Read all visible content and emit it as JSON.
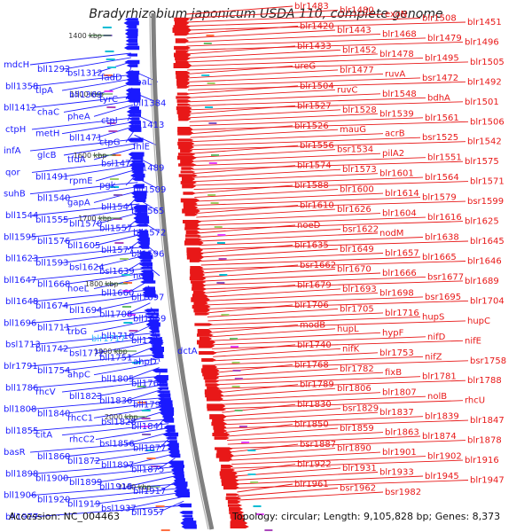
{
  "title": "Bradyrhizobium japonicum USDA 110, complete genome",
  "footer": {
    "accession": "Accession: NC_004463",
    "topology": "Topology: circular; Length: 9,105,828 bp; Genes: 8,373"
  },
  "colors": {
    "minus_strand": "#1a1aff",
    "plus_strand": "#e81818",
    "backbone": "#808080",
    "highlight_label": "#33bbff",
    "scale_marker": "#2e7d32"
  },
  "scale_labels": [
    "1400 kbp",
    "1500 kbp",
    "1600 kbp",
    "1700 kbp",
    "1800 kbp",
    "1900 kbp",
    "2000 kbp",
    "2100 kbp"
  ],
  "left_genes": [
    "mdcH",
    "bll1292",
    "bsl1312",
    "fadD",
    "coaL",
    "bll1358",
    "tlpA",
    "bll1369",
    "tyrC",
    "bll1384",
    "bll1412",
    "chaC",
    "pheA",
    "ctpI",
    "bll1413",
    "ctpH",
    "metH",
    "bll1471",
    "ctpG",
    "fhlE",
    "infA",
    "glcB",
    "tfdA",
    "bsl1473",
    "bll1489",
    "qor",
    "bll1491",
    "rpmE",
    "pgk",
    "bll1509",
    "suhB",
    "bll1540",
    "gapA",
    "bll1541",
    "bll1565",
    "bll1544",
    "bll1555",
    "bll1570",
    "bll1557",
    "bll1572",
    "bll1595",
    "bll1576",
    "bll1605",
    "bll1577",
    "bll1596",
    "bll1623",
    "bll1593",
    "bsl1624",
    "bsl1639",
    "nolK",
    "bll1647",
    "bll1668",
    "noeL",
    "bll1660",
    "bll1697",
    "bll1648",
    "bll1674",
    "bll1694",
    "bll1708",
    "bll1669",
    "bll1696",
    "bll1711",
    "trbG",
    "bll1710",
    "bll1741",
    "bsl1713",
    "bll1742",
    "bsl1772",
    "bll1751",
    "ahpD",
    "blr1791",
    "bll1754",
    "ahpC",
    "bll1805",
    "bll1766",
    "bll1786",
    "rhcV",
    "bll1823",
    "bll1836",
    "bll1790",
    "bll1808",
    "bll1840",
    "rhcC1",
    "bsl1828",
    "bll1841",
    "bll1855",
    "citA",
    "rhcC2",
    "bsl1856",
    "bll1877",
    "basR",
    "bll1860",
    "bll1872",
    "bll1897",
    "bll1875",
    "bll1898",
    "bll1900",
    "bll1899",
    "bll1918",
    "bll1917",
    "bll1906",
    "bll1920",
    "bll1919",
    "bsl1937",
    "bll1957",
    "bll1977"
  ],
  "highlight_gene": "blr1717",
  "inner_left_label": "dctA",
  "right_genes": [
    "blr1483",
    "blr1480",
    "exoN",
    "blr1508",
    "blr1451",
    "blr1420",
    "blr1443",
    "blr1468",
    "blr1479",
    "blr1496",
    "blr1433",
    "blr1452",
    "blr1478",
    "blr1495",
    "blr1505",
    "ureG",
    "blr1477",
    "ruvA",
    "bsr1472",
    "blr1492",
    "blr1504",
    "ruvC",
    "blr1548",
    "bdhA",
    "blr1501",
    "blr1527",
    "blr1528",
    "blr1539",
    "blr1561",
    "blr1506",
    "blr1526",
    "mauG",
    "acrB",
    "bsr1525",
    "blr1542",
    "blr1556",
    "bsr1534",
    "pilA2",
    "blr1551",
    "blr1575",
    "blr1574",
    "blr1573",
    "blr1601",
    "blr1564",
    "blr1571",
    "blr1588",
    "blr1600",
    "blr1614",
    "blr1579",
    "bsr1599",
    "blr1610",
    "blr1626",
    "blr1604",
    "blr1616",
    "blr1625",
    "noeD",
    "bsr1622",
    "nodM",
    "blr1638",
    "blr1645",
    "blr1635",
    "blr1649",
    "blr1657",
    "blr1665",
    "blr1646",
    "bsr1662",
    "blr1670",
    "blr1666",
    "bsr1677",
    "blr1689",
    "blr1679",
    "blr1693",
    "blr1698",
    "bsr1695",
    "blr1704",
    "blr1706",
    "blr1705",
    "blr1716",
    "hupS",
    "hupC",
    "modB",
    "hupL",
    "hypF",
    "nifD",
    "nifE",
    "blr1740",
    "nifK",
    "blr1753",
    "nifZ",
    "bsr1758",
    "blr1768",
    "blr1782",
    "fixB",
    "blr1781",
    "blr1788",
    "blr1789",
    "blr1806",
    "blr1807",
    "nolB",
    "rhcU",
    "blr1830",
    "bsr1829",
    "blr1837",
    "blr1839",
    "blr1847",
    "blr1850",
    "blr1859",
    "blr1863",
    "blr1874",
    "blr1878",
    "bsr1887",
    "blr1890",
    "blr1901",
    "blr1902",
    "blr1916",
    "blr1922",
    "blr1931",
    "blr1933",
    "blr1945",
    "blr1947",
    "blr1961",
    "bsr1962",
    "bsr1982"
  ]
}
